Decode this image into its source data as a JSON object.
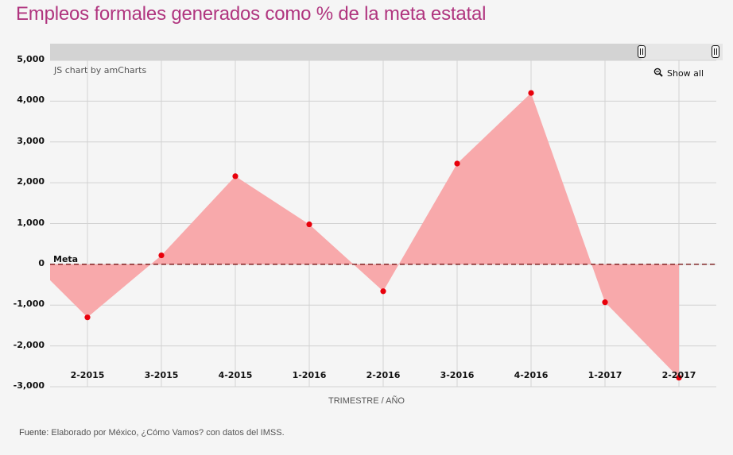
{
  "title": "Empleos formales generados como % de la meta estatal",
  "credit": "JS chart by amCharts",
  "show_all": "Show all",
  "source_label": "Fuente:",
  "source_text": " Elaborado por México, ¿Cómo Vamos? con datos del IMSS.",
  "colors": {
    "fill": "#f8a9ab",
    "point": "#e8000b",
    "guide": "#6b0000",
    "grid": "#d2d2d2",
    "title": "#b0357f"
  },
  "chart_data": {
    "type": "area",
    "title": "Empleos formales generados como % de la meta estatal",
    "xlabel": "TRIMESTRE / AÑO",
    "ylabel": "",
    "ylim": [
      -3000,
      5000
    ],
    "yticks": [
      5000,
      4000,
      3000,
      2000,
      1000,
      0,
      -1000,
      -2000,
      -3000
    ],
    "ytick_labels": [
      "5,000",
      "4,000",
      "3,000",
      "2,000",
      "1,000",
      "0",
      "-1,000",
      "-2,000",
      "-3,000"
    ],
    "grid": true,
    "categories": [
      "2-2015",
      "3-2015",
      "4-2015",
      "1-2016",
      "2-2016",
      "3-2016",
      "4-2016",
      "1-2017",
      "2-2017"
    ],
    "values": [
      -1300,
      220,
      2160,
      980,
      -660,
      2470,
      4200,
      -930,
      -2780
    ],
    "edge_value_left": -390,
    "guide": {
      "label": "Meta",
      "value": 0
    }
  }
}
